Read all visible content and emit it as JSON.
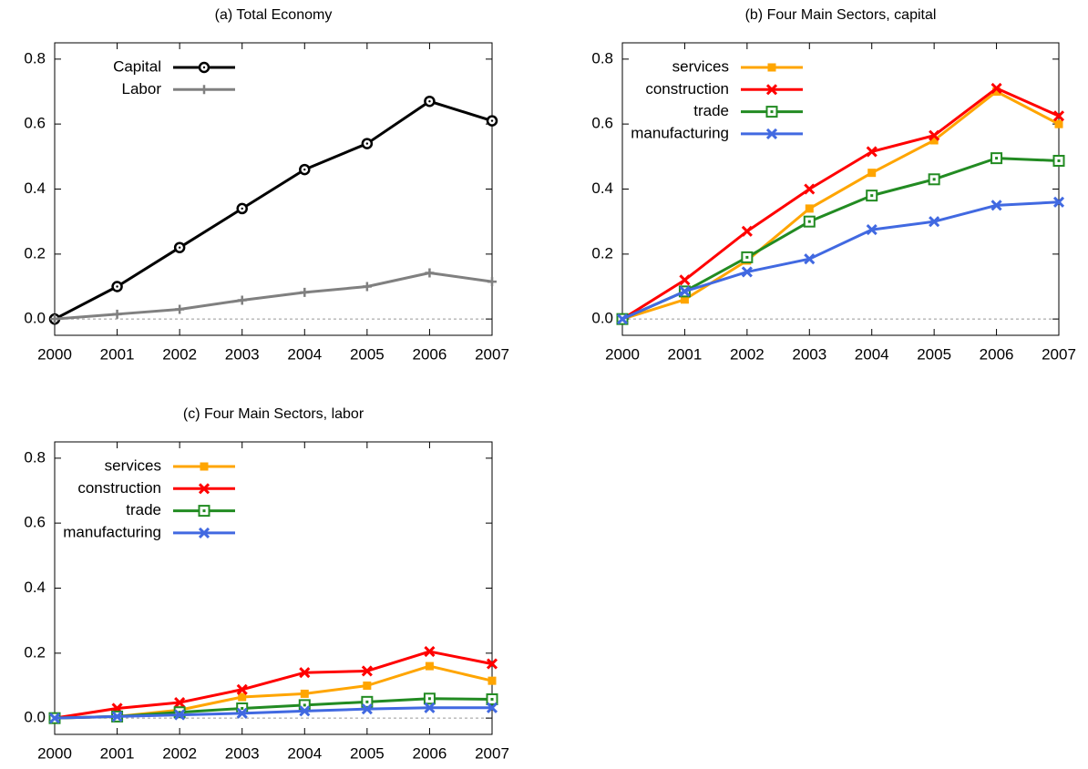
{
  "chart_data": [
    {
      "type": "line",
      "title": "(a) Total Economy",
      "x": [
        2000,
        2001,
        2002,
        2003,
        2004,
        2005,
        2006,
        2007
      ],
      "xlim": [
        2000,
        2007
      ],
      "xticks": [
        2000,
        2001,
        2002,
        2003,
        2004,
        2005,
        2006,
        2007
      ],
      "ylim": [
        -0.05,
        0.85
      ],
      "yticks": [
        {
          "value": 0,
          "label": "0.0"
        },
        0.2,
        0.4,
        0.6,
        0.8
      ],
      "zero_line": true,
      "legend": "top-left",
      "series": [
        {
          "name": "Capital",
          "color": "#000000",
          "marker": "circle",
          "values": [
            0,
            0.1,
            0.22,
            0.34,
            0.46,
            0.54,
            0.67,
            0.61
          ]
        },
        {
          "name": "Labor",
          "color": "#808080",
          "marker": "plus",
          "values": [
            0,
            0.015,
            0.03,
            0.058,
            0.082,
            0.1,
            0.142,
            0.115
          ]
        }
      ]
    },
    {
      "type": "line",
      "title": "(b) Four Main Sectors, capital",
      "x": [
        2000,
        2001,
        2002,
        2003,
        2004,
        2005,
        2006,
        2007
      ],
      "xlim": [
        2000,
        2007
      ],
      "xticks": [
        2000,
        2001,
        2002,
        2003,
        2004,
        2005,
        2006,
        2007
      ],
      "ylim": [
        -0.05,
        0.85
      ],
      "yticks": [
        {
          "value": 0,
          "label": "0.0"
        },
        0.2,
        0.4,
        0.6,
        0.8
      ],
      "zero_line": true,
      "legend": "top-left",
      "series": [
        {
          "name": "services",
          "color": "#ffa500",
          "marker": "square",
          "values": [
            0,
            0.06,
            0.18,
            0.34,
            0.45,
            0.55,
            0.7,
            0.6
          ]
        },
        {
          "name": "construction",
          "color": "#ff0000",
          "marker": "x",
          "values": [
            0,
            0.12,
            0.27,
            0.4,
            0.515,
            0.565,
            0.71,
            0.625
          ]
        },
        {
          "name": "trade",
          "color": "#228b22",
          "marker": "open-square",
          "values": [
            0,
            0.085,
            0.19,
            0.3,
            0.38,
            0.43,
            0.495,
            0.487
          ]
        },
        {
          "name": "manufacturing",
          "color": "#4169e1",
          "marker": "x",
          "values": [
            0,
            0.085,
            0.145,
            0.185,
            0.275,
            0.3,
            0.35,
            0.36
          ]
        }
      ]
    },
    {
      "type": "line",
      "title": "(c) Four Main Sectors, labor",
      "x": [
        2000,
        2001,
        2002,
        2003,
        2004,
        2005,
        2006,
        2007
      ],
      "xlim": [
        2000,
        2007
      ],
      "xticks": [
        2000,
        2001,
        2002,
        2003,
        2004,
        2005,
        2006,
        2007
      ],
      "ylim": [
        -0.05,
        0.85
      ],
      "yticks": [
        {
          "value": 0,
          "label": "0.0"
        },
        0.2,
        0.4,
        0.6,
        0.8
      ],
      "zero_line": true,
      "legend": "top-left",
      "series": [
        {
          "name": "services",
          "color": "#ffa500",
          "marker": "square",
          "values": [
            0,
            0.005,
            0.025,
            0.065,
            0.075,
            0.1,
            0.16,
            0.115
          ]
        },
        {
          "name": "construction",
          "color": "#ff0000",
          "marker": "x",
          "values": [
            0,
            0.03,
            0.048,
            0.088,
            0.14,
            0.145,
            0.205,
            0.167
          ]
        },
        {
          "name": "trade",
          "color": "#228b22",
          "marker": "open-square",
          "values": [
            0,
            0.005,
            0.018,
            0.03,
            0.04,
            0.05,
            0.06,
            0.058
          ]
        },
        {
          "name": "manufacturing",
          "color": "#4169e1",
          "marker": "x",
          "values": [
            0,
            0.005,
            0.01,
            0.015,
            0.022,
            0.028,
            0.032,
            0.032
          ]
        }
      ]
    }
  ]
}
